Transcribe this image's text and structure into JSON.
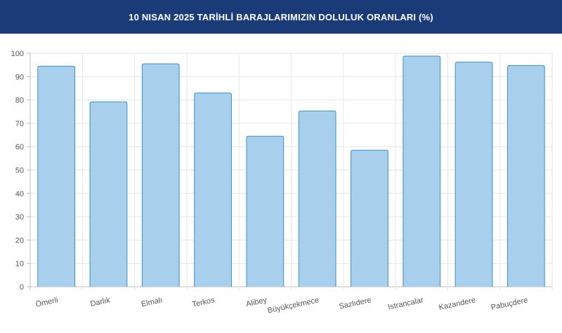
{
  "header": {
    "title": "10 NISAN 2025 TARİHLİ BARAJLARIMIZIN DOLULUK ORANLARI (%)"
  },
  "chart_data": {
    "type": "bar",
    "title": "10 NISAN 2025 TARİHLİ BARAJLARIMIZIN DOLULUK ORANLARI (%)",
    "categories": [
      "Ömerli",
      "Darlık",
      "Elmalı",
      "Terkos",
      "Alibey",
      "Büyükçekmece",
      "Sazlıdere",
      "Istrancalar",
      "Kazandere",
      "Pabuçdere"
    ],
    "values": [
      94.5,
      79.2,
      95.5,
      83.0,
      64.5,
      75.3,
      58.5,
      98.8,
      96.2,
      94.8
    ],
    "ylim": [
      0,
      100
    ],
    "yticks": [
      "0",
      "10",
      "20",
      "30",
      "40",
      "50",
      "60",
      "70",
      "80",
      "90",
      "100"
    ],
    "grid": true,
    "bar_fill": "#a8d0ec",
    "bar_stroke": "#3a8fd0"
  }
}
